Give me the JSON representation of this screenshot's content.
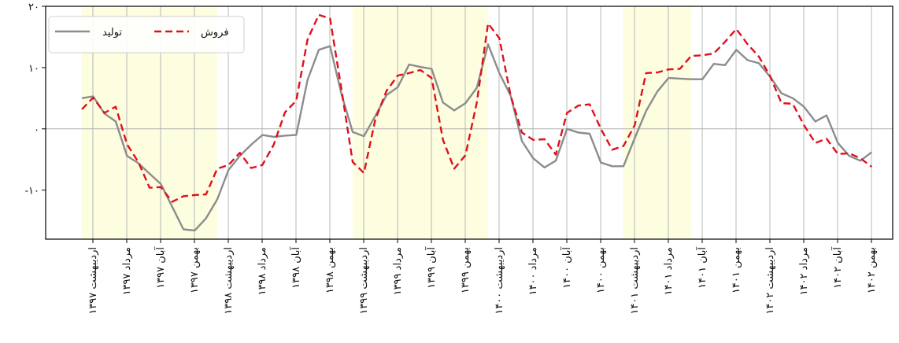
{
  "chart_data": {
    "type": "line",
    "title": "",
    "xlabel": "",
    "ylabel": "",
    "ylim": [
      -18,
      20
    ],
    "y_ticks": [
      {
        "value": 20,
        "label": "۲۰"
      },
      {
        "value": 10,
        "label": "۱۰"
      },
      {
        "value": 0,
        "label": "۰"
      },
      {
        "value": -10,
        "label": "-۱۰"
      }
    ],
    "x_tick_labels": [
      "اردیبهشت ۱۳۹۷",
      "مرداد ۱۳۹۷",
      "آبان ۱۳۹۷",
      "بهمن ۱۳۹۷",
      "اردیبهشت ۱۳۹۸",
      "مرداد ۱۳۹۸",
      "آبان ۱۳۹۸",
      "بهمن ۱۳۹۸",
      "اردیبهشت ۱۳۹۹",
      "مرداد ۱۳۹۹",
      "آبان ۱۳۹۹",
      "بهمن ۱۳۹۹",
      "اردیبهشت ۱۴۰۰",
      "مرداد ۱۴۰۰",
      "آبان ۱۴۰۰",
      "بهمن ۱۴۰۰",
      "اردیبهشت ۱۴۰۱",
      "مرداد ۱۴۰۱",
      "آبان ۱۴۰۱",
      "بهمن ۱۴۰۱",
      "اردیبهشت ۱۴۰۲",
      "مرداد ۱۴۰۲",
      "آبان ۱۴۰۲",
      "بهمن ۱۴۰۲"
    ],
    "shaded_periods_tick_index": [
      [
        -0.33,
        3.67
      ],
      [
        7.67,
        11.67
      ],
      [
        15.67,
        17.67
      ]
    ],
    "shade_color": "#fdfde0",
    "grid": "vertical",
    "zero_line": true,
    "legend": {
      "placement": "top-left"
    },
    "series": [
      {
        "name": "تولید",
        "color": "#8c8c8c",
        "style": "solid",
        "values": [
          5,
          5.3,
          2.5,
          1.2,
          -4.4,
          -5.6,
          -7.3,
          -9,
          -12.7,
          -16.4,
          -16.6,
          -14.6,
          -11.5,
          -6.7,
          -4.4,
          -2.6,
          -1,
          -1.3,
          -1.1,
          -1,
          8,
          12.9,
          13.5,
          5.7,
          -0.5,
          -1.2,
          2.1,
          5.5,
          6.8,
          10.5,
          10.1,
          9.8,
          4.3,
          3,
          4.2,
          6.7,
          13.8,
          9.1,
          5.4,
          -2,
          -4.8,
          -6.3,
          -5.2,
          0,
          -0.6,
          -0.8,
          -5.5,
          -6.1,
          -6.1,
          -1.5,
          2.9,
          6.1,
          8.3,
          8.2,
          8.1,
          8.1,
          10.6,
          10.4,
          12.9,
          11.2,
          10.7,
          8.5,
          5.8,
          5,
          3.6,
          1.2,
          2.2,
          -2.3,
          -4.4,
          -5.2,
          -3.8
        ]
      },
      {
        "name": "فروش",
        "color": "#e0101a",
        "style": "dashed",
        "values": [
          3.2,
          5.1,
          2.6,
          3.6,
          -2.5,
          -5.4,
          -9.6,
          -9.5,
          -11.9,
          -11,
          -10.8,
          -10.7,
          -6.5,
          -5.9,
          -3.9,
          -6.4,
          -5.9,
          -2.6,
          2.7,
          4.6,
          14.6,
          18.6,
          18,
          6.5,
          -5.4,
          -7.2,
          1.5,
          6.2,
          8.7,
          9.1,
          9.6,
          8.3,
          -1.8,
          -6.5,
          -4.3,
          4.3,
          17.2,
          14.8,
          5.4,
          -0.6,
          -1.8,
          -1.7,
          -4.2,
          2.6,
          3.8,
          4,
          0,
          -3.4,
          -2.8,
          0.6,
          9.1,
          9.2,
          9.7,
          9.8,
          11.9,
          12,
          12.3,
          14.2,
          16.3,
          13.8,
          11.8,
          8.6,
          4.2,
          4.1,
          0.6,
          -2.3,
          -1.6,
          -4.1,
          -4,
          -4.8,
          -6.2
        ]
      }
    ]
  }
}
